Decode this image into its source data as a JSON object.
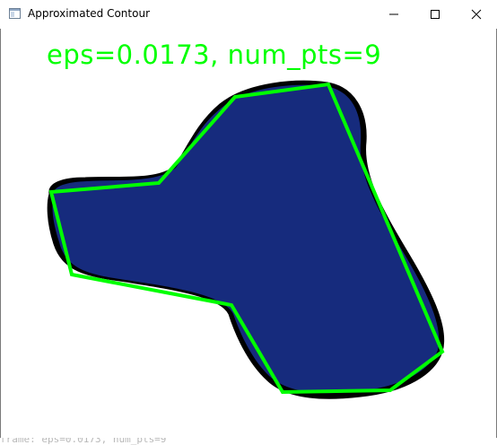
{
  "window": {
    "title": "Approximated Contour",
    "app_icon": "opencv-window-icon",
    "controls": {
      "minimize_icon": "minimize-icon",
      "maximize_icon": "maximize-icon",
      "close_icon": "close-icon"
    }
  },
  "canvas": {
    "overlay_text": "eps=0.0173, num_pts=9",
    "overlay_color": "#00ff00",
    "shape_fill": "#162b7d",
    "shape_outline": "#000000",
    "polygon_color": "#00ff00"
  },
  "status_text": "frame: eps=0.0173, num_pts=9"
}
